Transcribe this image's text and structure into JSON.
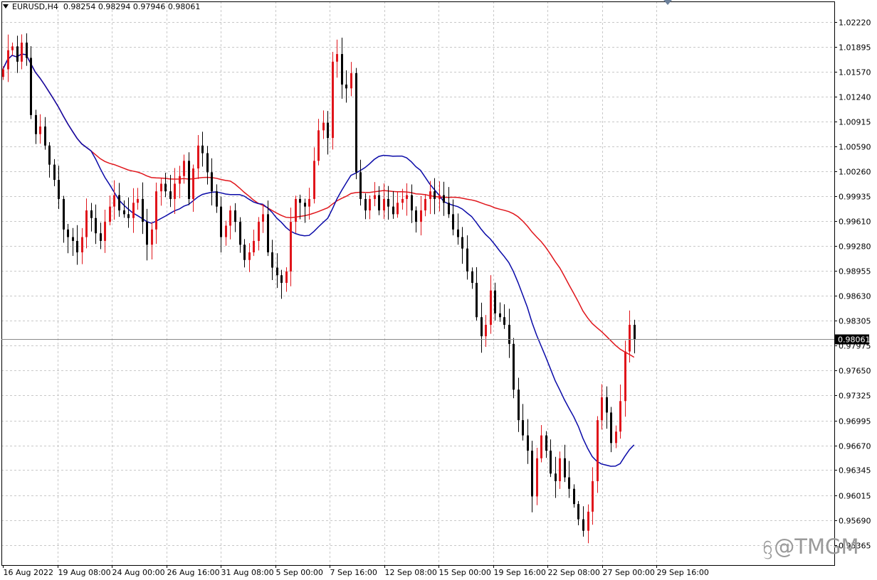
{
  "header": {
    "symbol": "EURUSD,H4",
    "ohlc": "0.98254 0.98294 0.97946 0.98061"
  },
  "watermark": {
    "text": "@TMGM",
    "icon": "tmgm-logo-icon"
  },
  "colors": {
    "bull": "#e0151b",
    "bear": "#000000",
    "ma_fast": "#0a0aa8",
    "ma_slow": "#e0151b",
    "grid": "#c8c8c8",
    "price_label_bg": "#000000"
  },
  "chart_data": {
    "type": "candlestick",
    "instrument": "EURUSD",
    "timeframe": "H4",
    "ylim": [
      0.951,
      1.0249
    ],
    "y_ticks": [
      "1.02220",
      "1.01895",
      "1.01570",
      "1.01240",
      "1.00915",
      "1.00590",
      "1.00260",
      "0.99935",
      "0.99610",
      "0.99280",
      "0.98955",
      "0.98630",
      "0.98305",
      "0.97975",
      "0.97650",
      "0.97325",
      "0.96995",
      "0.96670",
      "0.96345",
      "0.96015",
      "0.95690",
      "0.95365"
    ],
    "x_ticks": [
      "16 Aug 2022",
      "19 Aug 08:00",
      "24 Aug 00:00",
      "26 Aug 16:00",
      "31 Aug 08:00",
      "5 Sep 00:00",
      "7 Sep 16:00",
      "12 Sep 08:00",
      "15 Sep 00:00",
      "19 Sep 16:00",
      "22 Sep 08:00",
      "27 Sep 00:00",
      "29 Sep 16:00"
    ],
    "current_price": "0.98061",
    "close_path": [
      1.016,
      1.0185,
      1.019,
      1.017,
      1.0195,
      1.0175,
      1.01,
      1.0075,
      1.0085,
      1.006,
      1.0035,
      1.0015,
      0.999,
      0.995,
      0.994,
      0.9935,
      0.992,
      0.994,
      0.9975,
      0.9965,
      0.9945,
      0.9935,
      0.996,
      0.998,
      0.9995,
      0.9975,
      0.997,
      0.9965,
      0.9985,
      0.999,
      0.996,
      0.993,
      0.995,
      1.0,
      1.001,
      1.0,
      0.999,
      1.001,
      1.002,
      1.004,
      0.999,
      1.003,
      1.006,
      1.005,
      1.0025,
      1.0,
      0.998,
      0.994,
      0.9955,
      0.9975,
      0.996,
      0.993,
      0.991,
      0.992,
      0.9935,
      0.996,
      0.997,
      0.992,
      0.99,
      0.989,
      0.988,
      0.9895,
      0.996,
      0.999,
      0.9985,
      0.998,
      0.999,
      1.004,
      1.008,
      1.009,
      1.007,
      1.017,
      1.018,
      1.014,
      1.0135,
      1.0155,
      1.0025,
      0.999,
      0.9975,
      0.999,
      0.9995,
      0.9975,
      0.999,
      0.998,
      0.997,
      0.9985,
      0.999,
      0.9995,
      0.9975,
      0.996,
      0.9975,
      0.999,
      1.0,
      0.999,
      0.9995,
      0.9985,
      0.997,
      0.995,
      0.994,
      0.9925,
      0.9895,
      0.988,
      0.9835,
      0.981,
      0.9825,
      0.987,
      0.984,
      0.9835,
      0.9825,
      0.98,
      0.974,
      0.97,
      0.968,
      0.966,
      0.96,
      0.965,
      0.968,
      0.966,
      0.963,
      0.962,
      0.965,
      0.9625,
      0.961,
      0.959,
      0.957,
      0.9555,
      0.958,
      0.962,
      0.97,
      0.973,
      0.971,
      0.967,
      0.9685,
      0.9725,
      0.979,
      0.9825,
      0.9806
    ],
    "series": [
      {
        "type": "candles"
      },
      {
        "type": "ma",
        "period": 20
      },
      {
        "type": "ma",
        "period": 50
      }
    ]
  }
}
